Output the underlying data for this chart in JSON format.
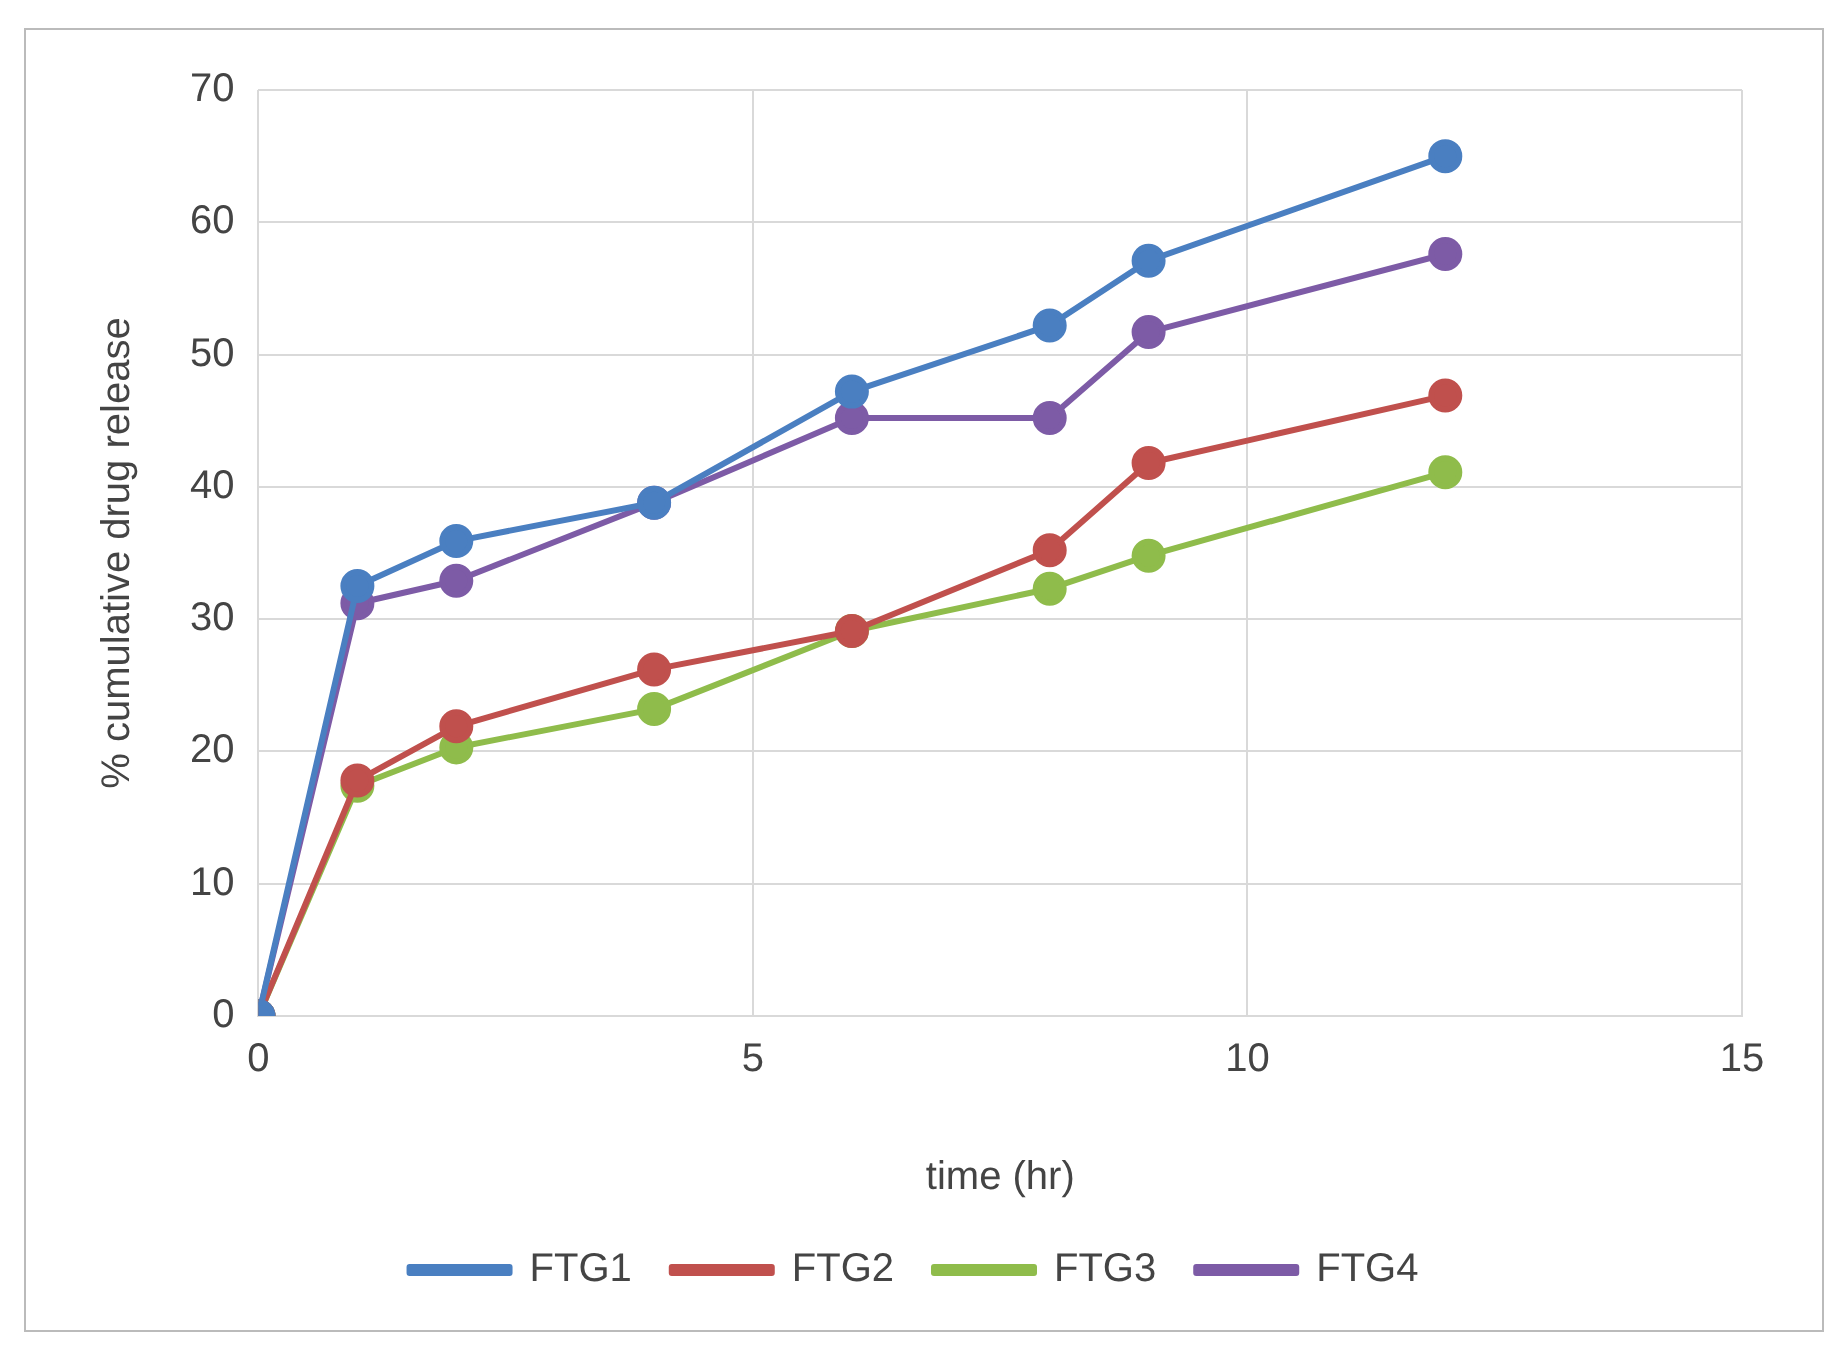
{
  "chart_data": {
    "type": "line",
    "xlabel": "time (hr)",
    "ylabel": "% cumulative drug release",
    "xlim": [
      0,
      15
    ],
    "xticks": [
      0,
      5,
      10,
      15
    ],
    "ylim": [
      0,
      70
    ],
    "yticks": [
      0,
      10,
      20,
      30,
      40,
      50,
      60,
      70
    ],
    "grid": true,
    "legend": "bottom",
    "marker": "circle",
    "line_style": "solid",
    "series": [
      {
        "name": "FTG1",
        "color": "#4a7fc1",
        "x": [
          0,
          1,
          2,
          4,
          6,
          8,
          9,
          12
        ],
        "values": [
          0,
          32.5,
          35.9,
          38.8,
          47.2,
          52.2,
          57.1,
          65
        ]
      },
      {
        "name": "FTG2",
        "color": "#c0504d",
        "x": [
          0,
          1,
          2,
          4,
          6,
          8,
          9,
          12
        ],
        "values": [
          0,
          17.8,
          21.9,
          26.2,
          29.1,
          35.2,
          41.8,
          46.9
        ]
      },
      {
        "name": "FTG3",
        "color": "#8fbc4b",
        "x": [
          0,
          1,
          2,
          4,
          6,
          8,
          9,
          12
        ],
        "values": [
          0,
          17.4,
          20.3,
          23.2,
          29.1,
          32.3,
          34.8,
          41.1
        ]
      },
      {
        "name": "FTG4",
        "color": "#7d5ba6",
        "x": [
          0,
          1,
          2,
          4,
          6,
          8,
          9,
          12
        ],
        "values": [
          0,
          31.2,
          32.9,
          38.8,
          45.2,
          45.2,
          51.7,
          57.6
        ]
      }
    ]
  }
}
